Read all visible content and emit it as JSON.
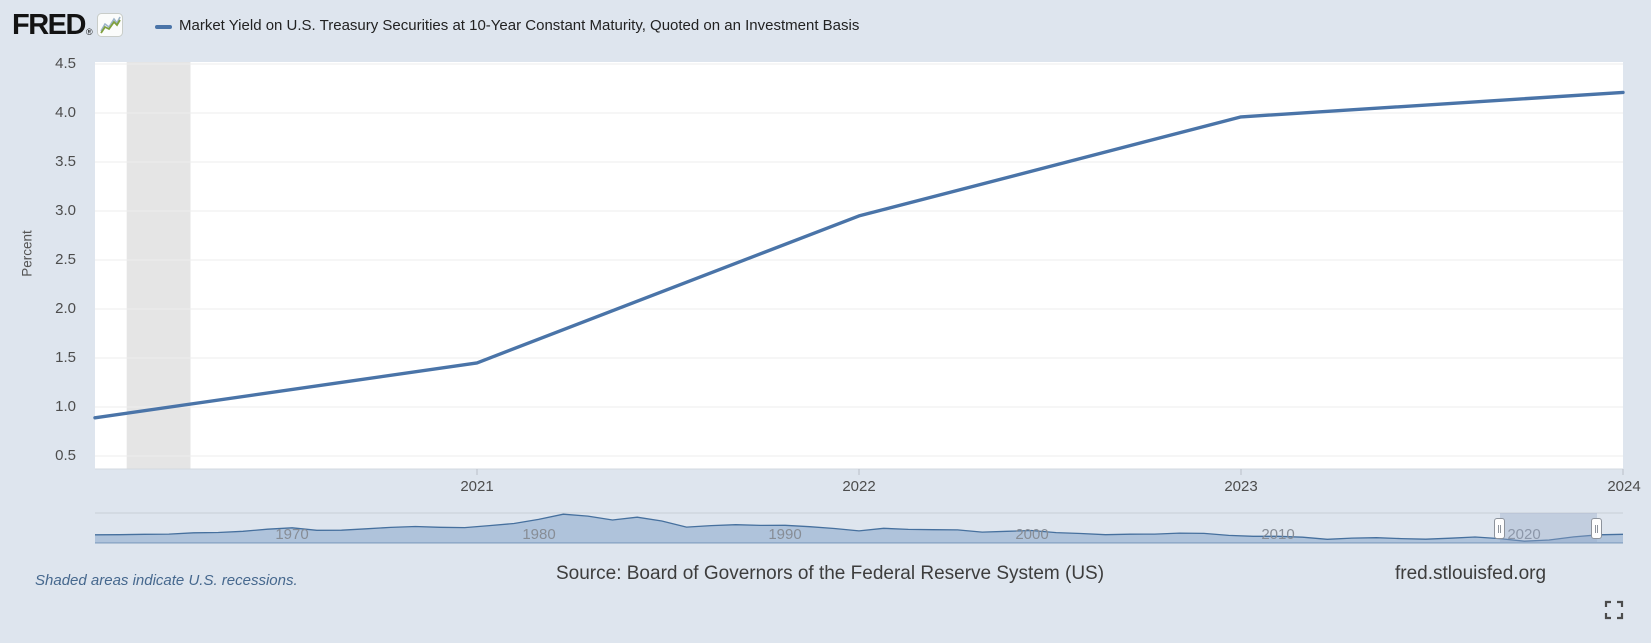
{
  "header": {
    "logo_text": "FRED",
    "logo_reg": "®",
    "legend_label": "Market Yield on U.S. Treasury Securities at 10-Year Constant Maturity, Quoted on an Investment Basis"
  },
  "footer": {
    "recession_note": "Shaded areas indicate U.S. recessions.",
    "source": "Source: Board of Governors of the Federal Reserve System (US)",
    "site": "fred.stlouisfed.org"
  },
  "icons": {
    "logo_chart_icon": "line-chart-icon",
    "fullscreen_icon": "fullscreen-expand-icon"
  },
  "colors": {
    "background": "#dee5ee",
    "plot_background": "#ffffff",
    "line": "#4a74a8",
    "recession_band": "#e5e5e5",
    "gridline": "#ededed",
    "mini_area_fill": "#a7bdd7",
    "mini_area_stroke": "#46709e",
    "selection_overlay": "rgba(150,167,200,0.38)"
  },
  "chart_data": {
    "type": "line",
    "title": "Market Yield on U.S. Treasury Securities at 10-Year Constant Maturity, Quoted on an Investment Basis",
    "ylabel": "Percent",
    "xlabel": "",
    "legend_position": "top",
    "grid": true,
    "main_chart": {
      "frequency": "annual",
      "x": [
        2020,
        2021,
        2022,
        2023,
        2024
      ],
      "values": [
        0.89,
        1.45,
        2.95,
        3.96,
        4.21
      ],
      "xlim": [
        2020,
        2024
      ],
      "ylim": [
        0.5,
        4.5
      ],
      "y_ticks": [
        "0.5",
        "1.0",
        "1.5",
        "2.0",
        "2.5",
        "3.0",
        "3.5",
        "4.0",
        "4.5"
      ],
      "x_ticks": [
        "2021",
        "2022",
        "2023",
        "2024"
      ],
      "recessions": [
        {
          "start": 2020.083,
          "end": 2020.25
        }
      ]
    },
    "mini_chart": {
      "description": "navigator sparkline of full history, annual values",
      "years_start": 1962,
      "years_end": 2024,
      "values": [
        3.95,
        4.0,
        4.19,
        4.28,
        4.93,
        5.07,
        5.64,
        6.67,
        7.35,
        6.16,
        6.21,
        6.85,
        7.56,
        7.99,
        7.61,
        7.42,
        8.41,
        9.43,
        11.43,
        13.92,
        13.01,
        11.1,
        12.46,
        10.62,
        7.67,
        8.39,
        8.85,
        8.49,
        8.55,
        7.86,
        7.01,
        5.87,
        7.09,
        6.57,
        6.44,
        6.35,
        5.26,
        5.65,
        6.03,
        5.02,
        4.61,
        4.01,
        4.27,
        4.29,
        4.8,
        4.63,
        3.66,
        3.26,
        3.22,
        2.78,
        1.8,
        2.35,
        2.54,
        2.14,
        1.84,
        2.33,
        2.91,
        2.14,
        0.89,
        1.45,
        2.95,
        3.96,
        4.21
      ],
      "decade_labels": [
        "1970",
        "1980",
        "1990",
        "2000",
        "2010",
        "2020"
      ],
      "selection_years": [
        2020,
        2024
      ]
    }
  }
}
